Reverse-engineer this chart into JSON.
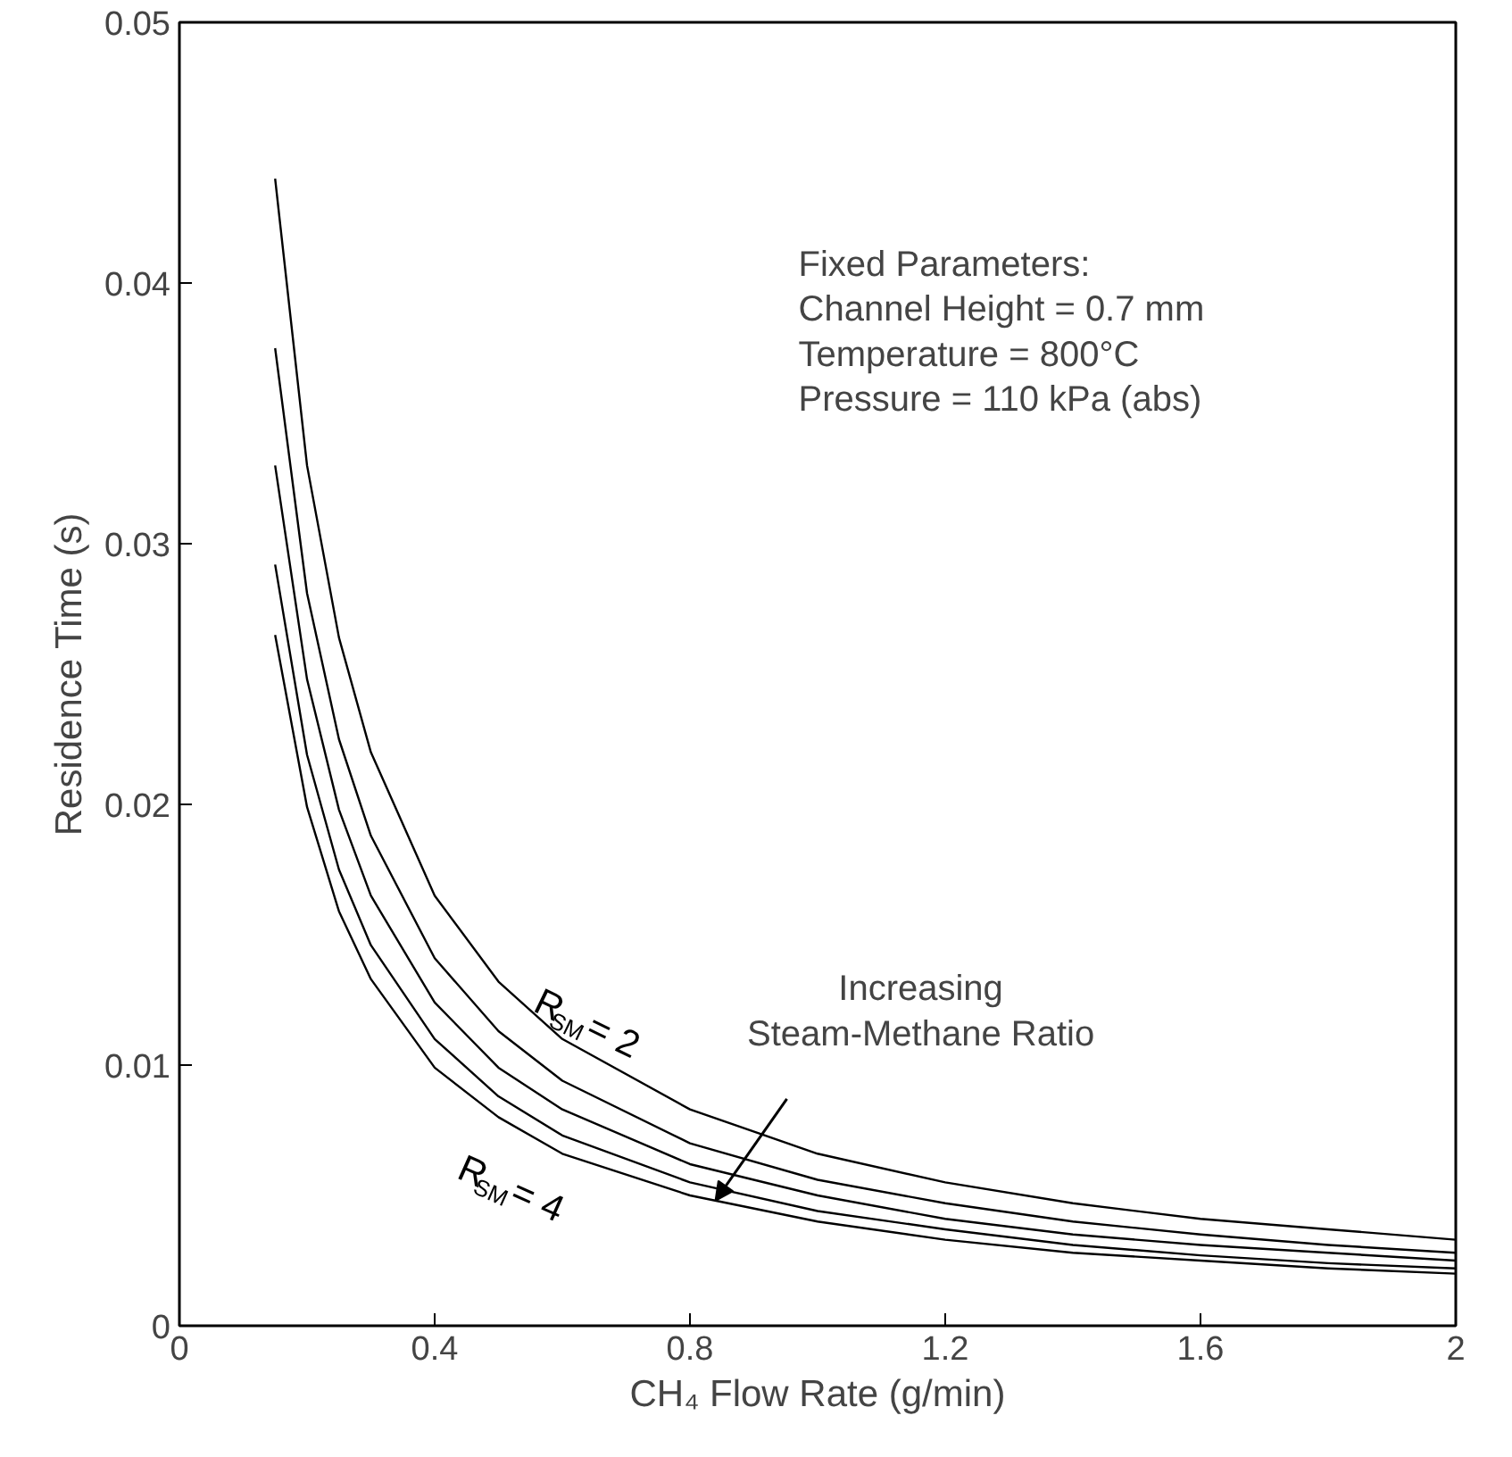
{
  "chart_data": {
    "type": "line",
    "xlabel": "CH₄ Flow Rate (g/min)",
    "ylabel": "Residence Time (s)",
    "x": [
      0.15,
      0.2,
      0.25,
      0.3,
      0.4,
      0.5,
      0.6,
      0.8,
      1.0,
      1.2,
      1.4,
      1.6,
      1.8,
      2.0
    ],
    "series": [
      {
        "color": "#000000",
        "values": [
          0.044,
          0.033,
          0.0264,
          0.022,
          0.0165,
          0.0132,
          0.011,
          0.0083,
          0.0066,
          0.0055,
          0.0047,
          0.0041,
          0.0037,
          0.0033
        ]
      },
      {
        "color": "#000000",
        "values": [
          0.0375,
          0.0281,
          0.0225,
          0.0188,
          0.0141,
          0.0113,
          0.0094,
          0.007,
          0.0056,
          0.0047,
          0.004,
          0.0035,
          0.0031,
          0.0028
        ]
      },
      {
        "color": "#000000",
        "values": [
          0.033,
          0.0248,
          0.0198,
          0.0165,
          0.0124,
          0.0099,
          0.0083,
          0.0062,
          0.005,
          0.0041,
          0.0035,
          0.0031,
          0.0028,
          0.0025
        ]
      },
      {
        "color": "#000000",
        "values": [
          0.0292,
          0.0219,
          0.0175,
          0.0146,
          0.011,
          0.0088,
          0.0073,
          0.0055,
          0.0044,
          0.0037,
          0.0031,
          0.0027,
          0.0024,
          0.0022
        ]
      },
      {
        "color": "#000000",
        "values": [
          0.0265,
          0.0199,
          0.0159,
          0.0133,
          0.0099,
          0.008,
          0.0066,
          0.005,
          0.004,
          0.0033,
          0.0028,
          0.0025,
          0.0022,
          0.002
        ]
      }
    ],
    "xlim": [
      0,
      2
    ],
    "xticks": [
      0,
      0.4,
      0.8,
      1.2,
      1.6,
      2
    ],
    "ylim": [
      0,
      0.05
    ],
    "yticks": [
      0,
      0.01,
      0.02,
      0.03,
      0.04,
      0.05
    ],
    "grid": false,
    "marker": "none",
    "line_style": "solid",
    "annotations": [
      "R$_{SM}$ = 2",
      "R$_{SM}$ = 4",
      {
        "text": "Increasing\nSteam-Methane Ratio",
        "x": 0.84,
        "y": 0.0048
      },
      "Fixed Parameters:\nChannel Height = 0.7 mm\nTemperature = 800°C\nPressure = 110 kPa (abs)"
    ]
  }
}
